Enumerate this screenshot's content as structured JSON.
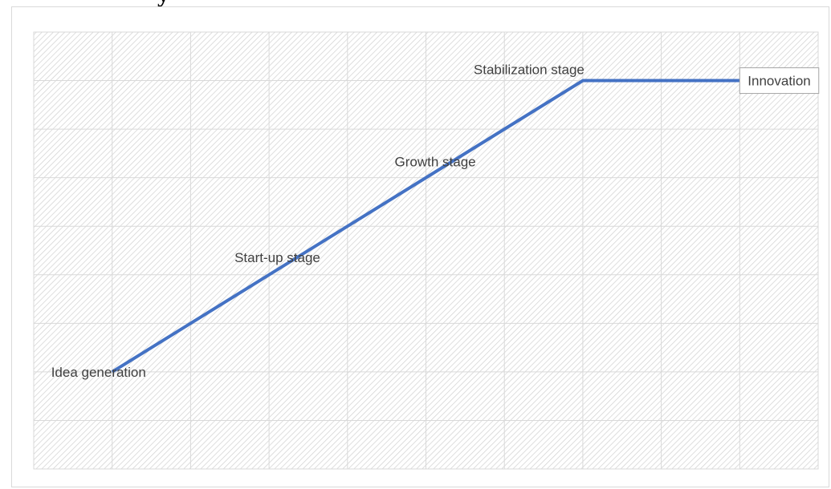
{
  "chart_data": {
    "type": "line",
    "title": "",
    "xlabel": "",
    "ylabel": "",
    "grid": true,
    "background_pattern": "diagonal-hatch",
    "line_color": "#4472c4",
    "x_categories": 10,
    "y_divisions": 9,
    "points": [
      {
        "x": 1,
        "y": 2
      },
      {
        "x": 7,
        "y": 8
      },
      {
        "x": 9,
        "y": 8
      }
    ],
    "annotations": [
      {
        "id": "idea",
        "text": "Idea generation",
        "x": 1,
        "y": 2,
        "boxed": false
      },
      {
        "id": "startup",
        "text": "Start-up stage",
        "x": 3,
        "y": 4,
        "boxed": false
      },
      {
        "id": "growth",
        "text": "Growth stage",
        "x": 5,
        "y": 6,
        "boxed": false
      },
      {
        "id": "stabilization",
        "text": "Stabilization stage",
        "x": 7,
        "y": 8,
        "boxed": false
      },
      {
        "id": "innovation",
        "text": "Innovation",
        "x": 9,
        "y": 8,
        "boxed": true
      }
    ]
  },
  "cropped_caption_fragment": "y"
}
